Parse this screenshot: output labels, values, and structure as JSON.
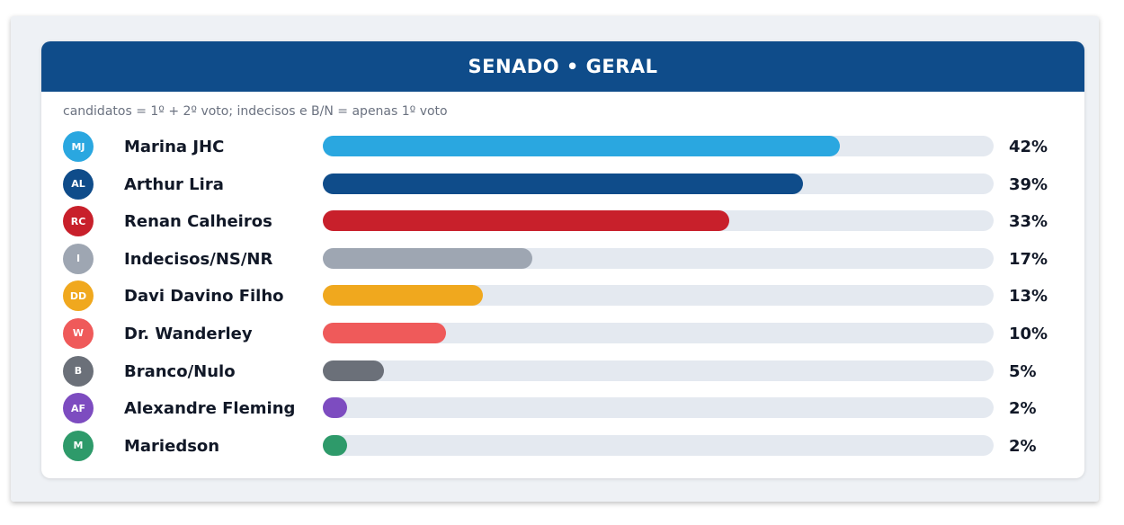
{
  "header": {
    "title": "SENADO • GERAL"
  },
  "subtitle": "candidatos = 1º + 2º voto; indecisos e B/N = apenas 1º voto",
  "chart_data": {
    "type": "bar",
    "orientation": "horizontal",
    "title": "SENADO • GERAL",
    "subtitle": "candidatos = 1º + 2º voto; indecisos e B/N = apenas 1º voto",
    "xlim": [
      0,
      100
    ],
    "unit": "%",
    "categories": [
      "Marina JHC",
      "Arthur Lira",
      "Renan Calheiros",
      "Indecisos/NS/NR",
      "Davi Davino Filho",
      "Dr. Wanderley",
      "Branco/Nulo",
      "Alexandre Fleming",
      "Mariedson"
    ],
    "values": [
      42,
      39,
      33,
      17,
      13,
      10,
      5,
      2,
      2
    ],
    "labels": [
      "42%",
      "39%",
      "33%",
      "17%",
      "13%",
      "10%",
      "5%",
      "2%",
      "2%"
    ],
    "initials": [
      "MJ",
      "AL",
      "RC",
      "I",
      "DD",
      "W",
      "B",
      "AF",
      "M"
    ],
    "colors": [
      "#2aa7e0",
      "#0f4c8a",
      "#c8202b",
      "#9ea6b2",
      "#f0a81e",
      "#ef5a5a",
      "#6b7079",
      "#7d4cc0",
      "#2e9a6a"
    ]
  }
}
